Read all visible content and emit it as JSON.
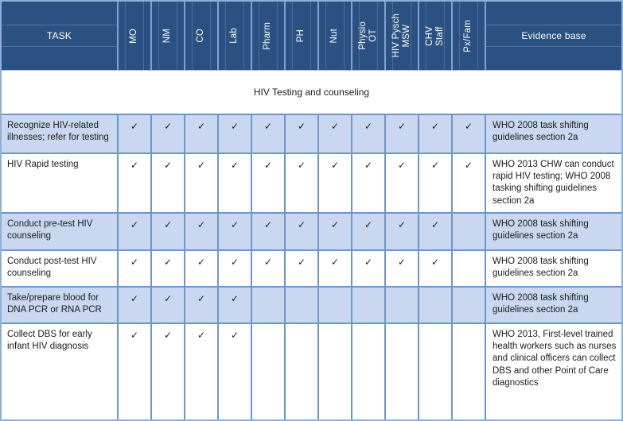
{
  "table": {
    "header": {
      "task_label": "TASK",
      "evidence_label": "Evidence base",
      "role_columns": [
        {
          "id": "mo",
          "lines": [
            "MO"
          ]
        },
        {
          "id": "nm",
          "lines": [
            "NM"
          ]
        },
        {
          "id": "co",
          "lines": [
            "CO"
          ]
        },
        {
          "id": "lab",
          "lines": [
            "Lab"
          ]
        },
        {
          "id": "pharm",
          "lines": [
            "Pharm"
          ]
        },
        {
          "id": "ph",
          "lines": [
            "PH"
          ]
        },
        {
          "id": "nut",
          "lines": [
            "Nut"
          ]
        },
        {
          "id": "physio-ot",
          "lines": [
            "Physio",
            "OT"
          ]
        },
        {
          "id": "hiv-pysch-msw",
          "lines": [
            "HIV Pysch",
            "MSW"
          ]
        },
        {
          "id": "chv-staff",
          "lines": [
            "CHV",
            "Staff"
          ]
        },
        {
          "id": "px-fam",
          "lines": [
            "Px/Fam"
          ]
        }
      ]
    },
    "section_title": "HIV Testing and counseling",
    "check_glyph": "✓",
    "rows": [
      {
        "task": "Recognize HIV-related illnesses; refer for testing",
        "checks": [
          true,
          true,
          true,
          true,
          true,
          true,
          true,
          true,
          true,
          true,
          true
        ],
        "evidence": "WHO 2008 task shifting guidelines section 2a",
        "shaded": true
      },
      {
        "task": "HIV Rapid testing",
        "checks": [
          true,
          true,
          true,
          true,
          true,
          true,
          true,
          true,
          true,
          true,
          true
        ],
        "evidence": "WHO 2013 CHW can conduct rapid HIV testing; WHO 2008 tasking shifting guidelines section 2a",
        "shaded": false
      },
      {
        "task": "Conduct pre-test HIV counseling",
        "checks": [
          true,
          true,
          true,
          true,
          true,
          true,
          true,
          true,
          true,
          true,
          false
        ],
        "evidence": "WHO 2008 task shifting guidelines section 2a",
        "shaded": true
      },
      {
        "task": "Conduct post-test HIV counseling",
        "checks": [
          true,
          true,
          true,
          true,
          true,
          true,
          true,
          true,
          true,
          true,
          false
        ],
        "evidence": "WHO 2008 task shifting guidelines section 2a",
        "shaded": false
      },
      {
        "task": "Take/prepare blood for DNA PCR or RNA PCR",
        "checks": [
          true,
          true,
          true,
          true,
          false,
          false,
          false,
          false,
          false,
          false,
          false
        ],
        "evidence": "WHO 2008 task shifting guidelines section 2a",
        "shaded": true
      },
      {
        "task": "Collect DBS for early infant HIV diagnosis",
        "checks": [
          true,
          true,
          true,
          true,
          false,
          false,
          false,
          false,
          false,
          false,
          false
        ],
        "evidence": "WHO 2013, First-level trained health workers such as nurses and clinical officers can collect DBS and other Point of Care diagnostics",
        "shaded": false
      }
    ],
    "colors": {
      "header_bg": "#2A5182",
      "header_text": "#FFFFFF",
      "shaded_row_bg": "#C9D8F0",
      "grid_border": "#6C96CB",
      "outer_border": "#8FAFD6",
      "body_text": "#1B1B1B"
    }
  }
}
